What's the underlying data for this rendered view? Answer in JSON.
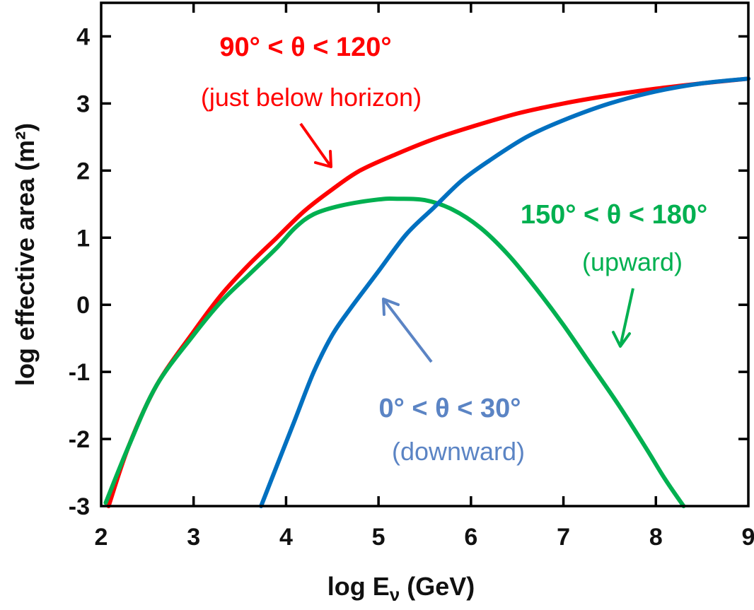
{
  "chart_data": {
    "type": "line",
    "title": "",
    "xlabel": "log E",
    "xlabel_sub": "ν",
    "xlabel_unit": " (GeV)",
    "ylabel": "log effective area (m²)",
    "xlim": [
      2,
      9
    ],
    "ylim": [
      -3,
      4.5
    ],
    "x_ticks": [
      "2",
      "3",
      "4",
      "5",
      "6",
      "7",
      "8",
      "9"
    ],
    "y_ticks": [
      "-3",
      "-2",
      "-1",
      "0",
      "1",
      "2",
      "3",
      "4"
    ],
    "grid": false,
    "series": [
      {
        "key": "just_below_horizon",
        "color": "#ff0000",
        "x": [
          2.08,
          2.3,
          2.6,
          3.0,
          3.3,
          3.6,
          3.9,
          4.2,
          4.5,
          4.8,
          5.2,
          5.6,
          6.0,
          6.5,
          7.0,
          7.5,
          8.0,
          8.5,
          9.0
        ],
        "y": [
          -3.0,
          -2.1,
          -1.2,
          -0.4,
          0.15,
          0.6,
          1.0,
          1.4,
          1.72,
          2.0,
          2.25,
          2.47,
          2.65,
          2.85,
          3.0,
          3.12,
          3.22,
          3.3,
          3.37
        ]
      },
      {
        "key": "upward",
        "color": "#00b050",
        "x": [
          2.05,
          2.3,
          2.6,
          3.0,
          3.3,
          3.6,
          3.9,
          4.1,
          4.3,
          4.6,
          5.0,
          5.2,
          5.5,
          5.8,
          6.1,
          6.4,
          6.7,
          7.0,
          7.3,
          7.6,
          7.9,
          8.1,
          8.3
        ],
        "y": [
          -2.95,
          -2.1,
          -1.2,
          -0.45,
          0.05,
          0.45,
          0.85,
          1.15,
          1.35,
          1.48,
          1.57,
          1.58,
          1.56,
          1.42,
          1.15,
          0.75,
          0.25,
          -0.3,
          -0.9,
          -1.5,
          -2.15,
          -2.6,
          -3.0
        ]
      },
      {
        "key": "downward",
        "color": "#0070c0",
        "x": [
          3.73,
          3.9,
          4.1,
          4.3,
          4.5,
          4.7,
          5.0,
          5.3,
          5.6,
          5.9,
          6.2,
          6.6,
          7.0,
          7.5,
          8.0,
          8.5,
          9.0
        ],
        "y": [
          -3.0,
          -2.4,
          -1.7,
          -1.0,
          -0.45,
          -0.05,
          0.5,
          1.05,
          1.45,
          1.85,
          2.15,
          2.5,
          2.75,
          3.0,
          3.18,
          3.3,
          3.37
        ]
      }
    ],
    "annotations": {
      "red_range": "90° < θ < 120°",
      "red_desc": "(just below horizon)",
      "green_range": "150° < θ < 180°",
      "green_desc": "(upward)",
      "blue_range": "0° < θ < 30°",
      "blue_desc": "(downward)"
    },
    "annotation_colors": {
      "red": "#ff0000",
      "green": "#00b050",
      "blue": "#5b84c4"
    }
  }
}
